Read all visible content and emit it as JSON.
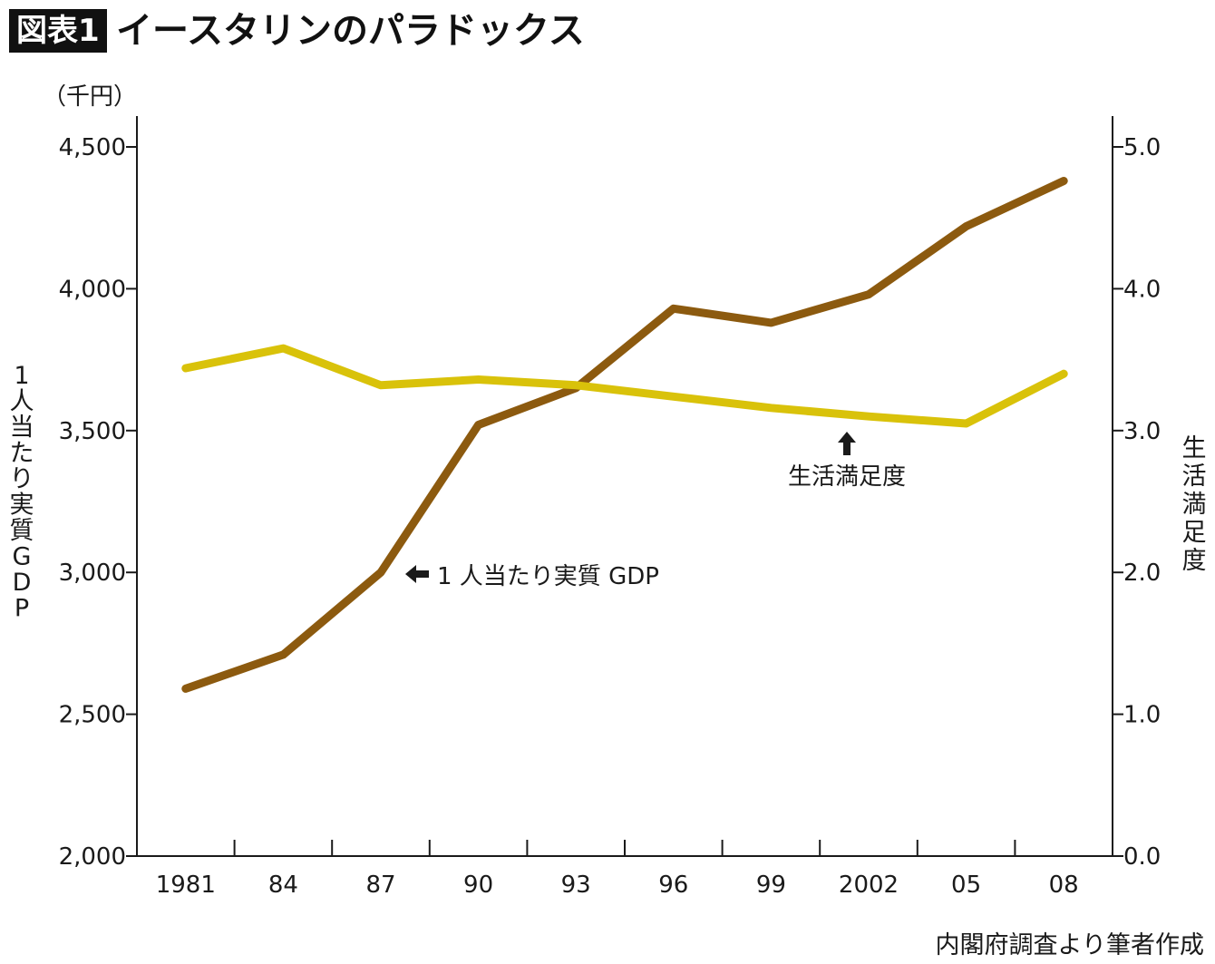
{
  "header": {
    "badge": "図表1",
    "title": "イースタリンのパラドックス"
  },
  "source_note": "内閣府調査より筆者作成",
  "colors": {
    "gdp_line": "#8C5A0F",
    "satisfaction_line": "#D9C20A",
    "axis": "#1a1a1a"
  },
  "chart_data": {
    "type": "line",
    "x": [
      "1981",
      "84",
      "87",
      "90",
      "93",
      "96",
      "99",
      "2002",
      "05",
      "08"
    ],
    "y_left": {
      "unit_label": "（千円）",
      "label": "1人当たり実質GDP",
      "range": [
        2000,
        4500
      ],
      "ticks": [
        "2,000",
        "2,500",
        "3,000",
        "3,500",
        "4,000",
        "4,500"
      ],
      "tick_values": [
        2000,
        2500,
        3000,
        3500,
        4000,
        4500
      ]
    },
    "y_right": {
      "label": "生活満足度",
      "range": [
        0,
        5
      ],
      "ticks": [
        "0.0",
        "1.0",
        "2.0",
        "3.0",
        "4.0",
        "5.0"
      ],
      "tick_values": [
        0,
        1,
        2,
        3,
        4,
        5
      ]
    },
    "series": [
      {
        "name": "1人当たり実質GDP",
        "axis": "left",
        "values": [
          2590,
          2710,
          3000,
          3520,
          3650,
          3930,
          3880,
          3980,
          4220,
          4380
        ]
      },
      {
        "name": "生活満足度",
        "axis": "right",
        "values": [
          3.44,
          3.58,
          3.32,
          3.36,
          3.32,
          3.24,
          3.16,
          3.1,
          3.05,
          3.4
        ]
      }
    ],
    "annotations": [
      {
        "text": "1 人当たり実質 GDP",
        "arrow": "left"
      },
      {
        "text": "生活満足度",
        "arrow": "up"
      }
    ],
    "grid": false,
    "legend": "none"
  }
}
